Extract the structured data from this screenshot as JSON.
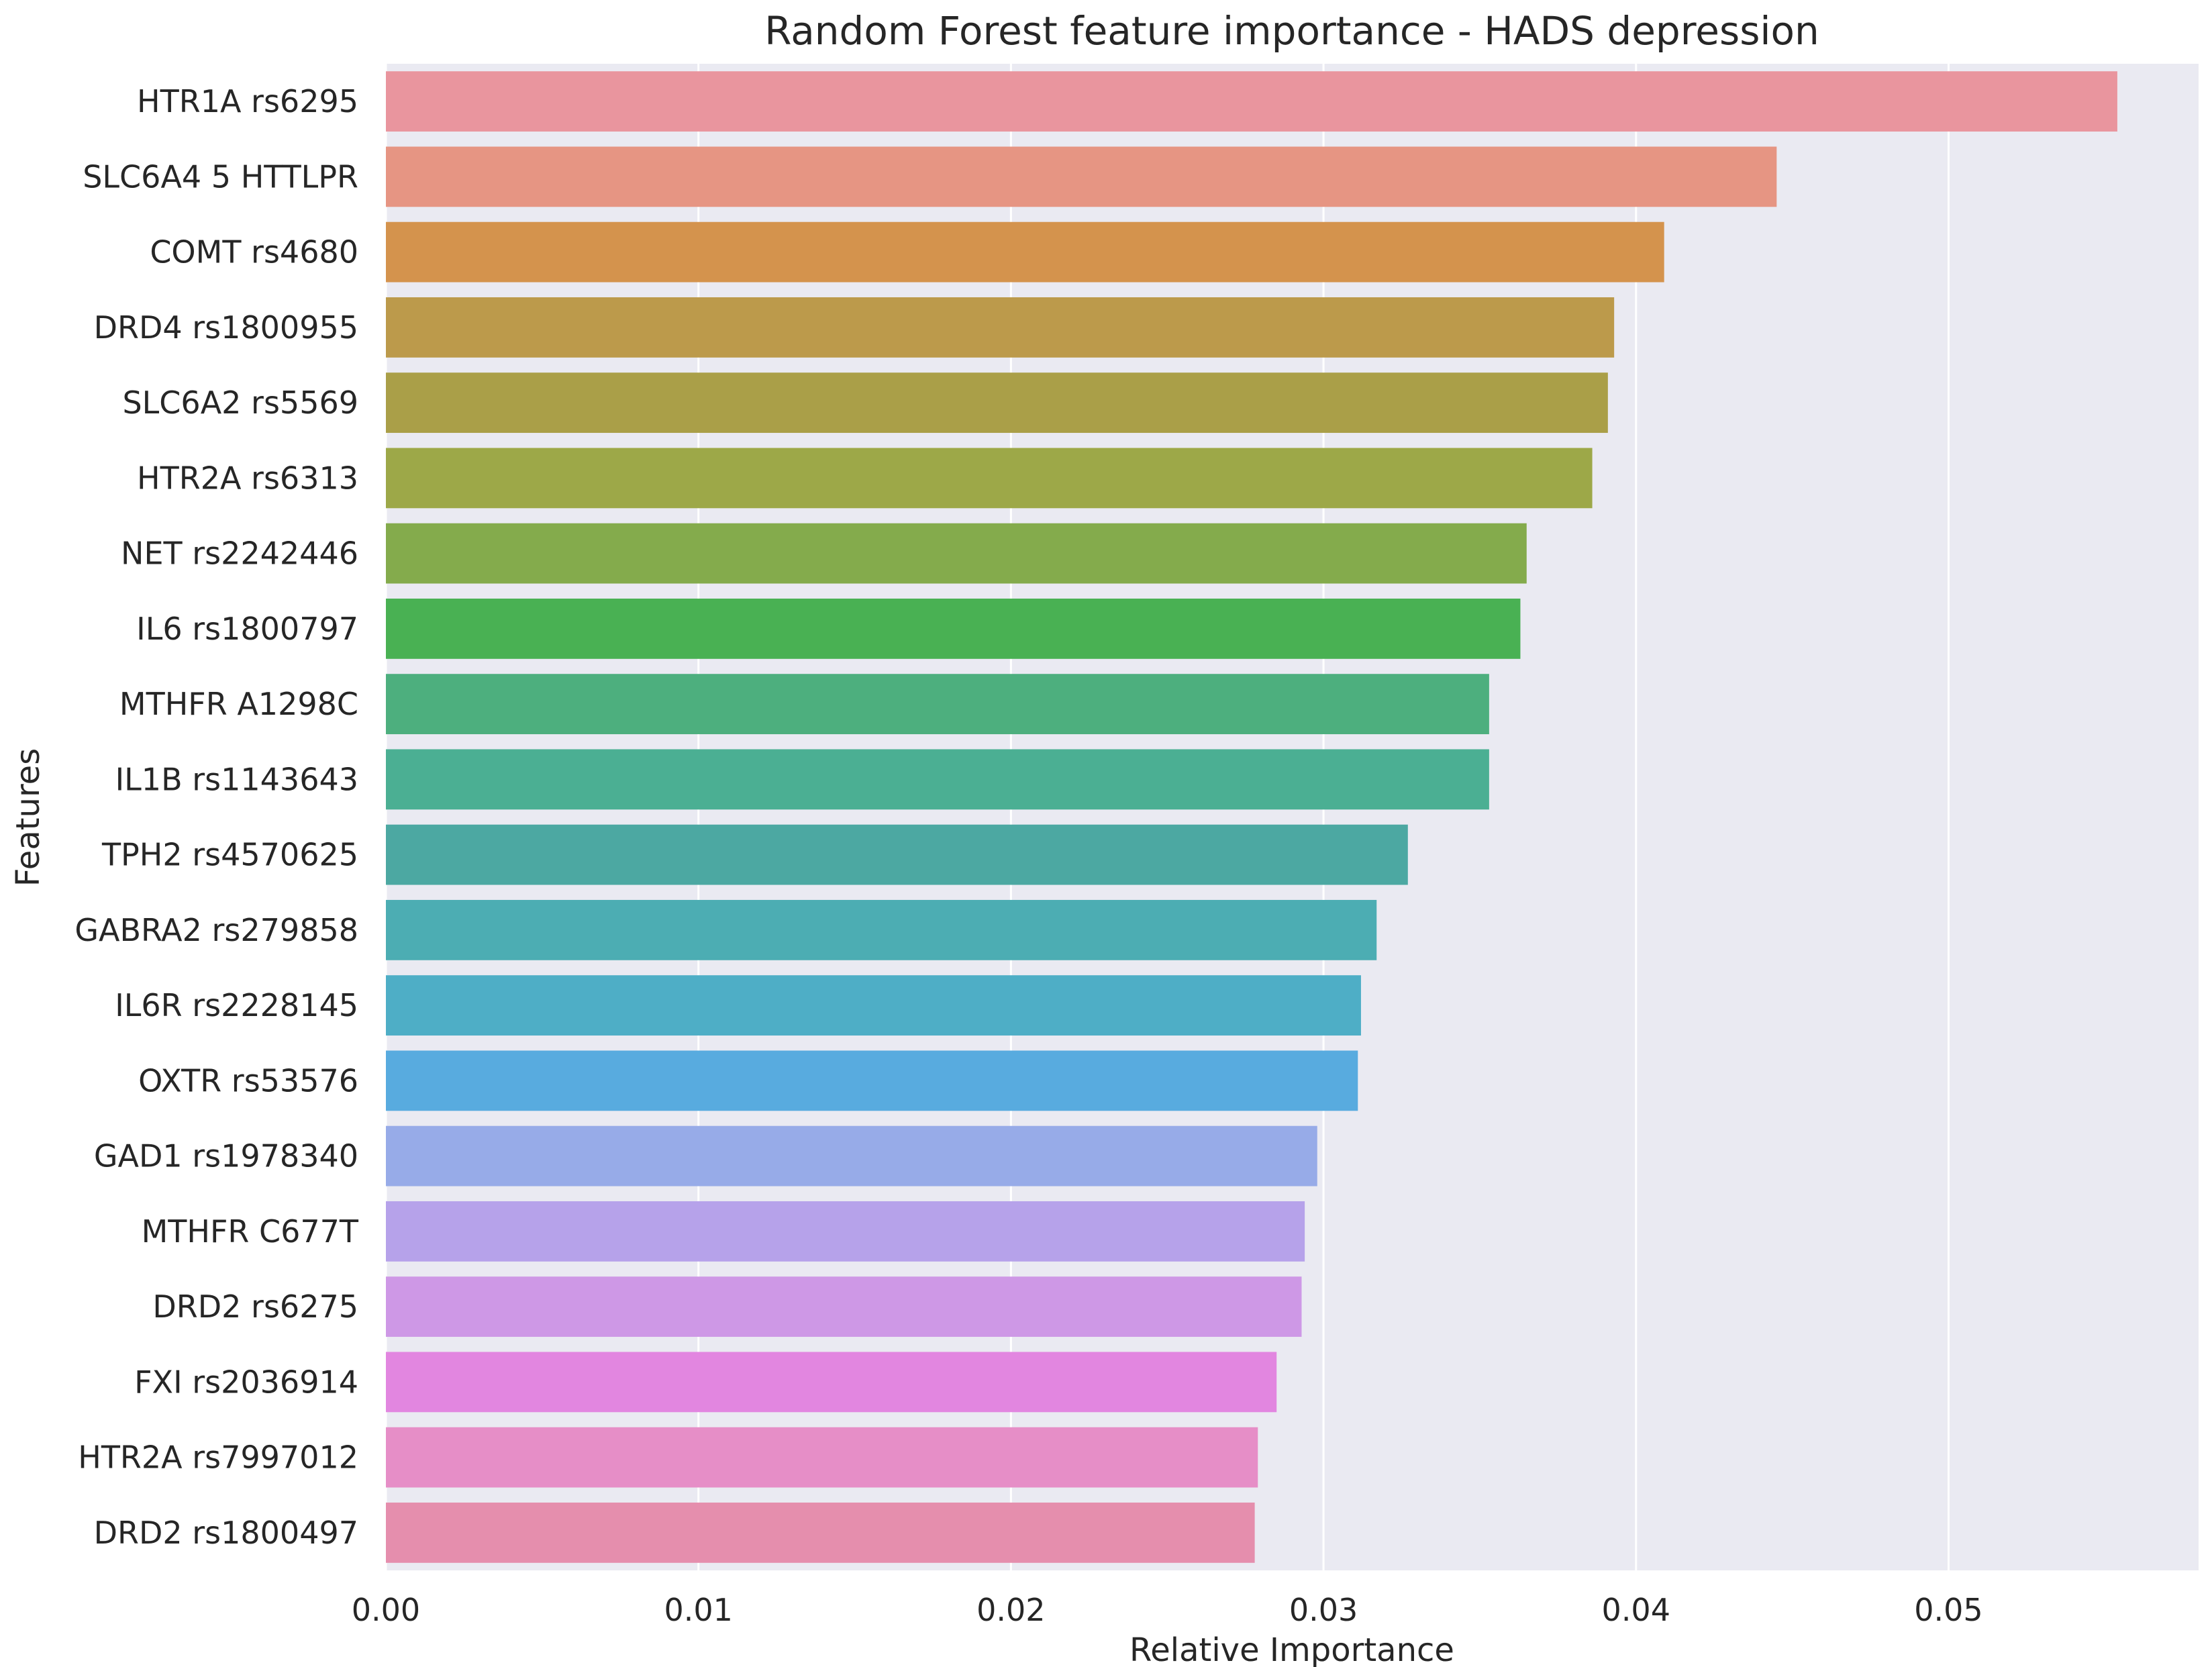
{
  "chart_data": {
    "type": "bar",
    "orientation": "horizontal",
    "title": "Random Forest feature importance - HADS  depression",
    "xlabel": "Relative Importance",
    "ylabel": "Features",
    "xlim": [
      0,
      0.058
    ],
    "xticks": [
      0.0,
      0.01,
      0.02,
      0.03,
      0.04,
      0.05
    ],
    "xtick_labels": [
      "0.00",
      "0.01",
      "0.02",
      "0.03",
      "0.04",
      "0.05"
    ],
    "grid": true,
    "legend": "none",
    "categories": [
      "HTR1A  rs6295",
      "SLC6A4  5  HTTLPR",
      "COMT  rs4680",
      "DRD4  rs1800955",
      "SLC6A2  rs5569",
      "HTR2A  rs6313",
      "NET  rs2242446",
      "IL6  rs1800797",
      "MTHFR  A1298C",
      "IL1B  rs1143643",
      "TPH2  rs4570625",
      "GABRA2  rs279858",
      "IL6R  rs2228145",
      "OXTR  rs53576",
      "GAD1  rs1978340",
      "MTHFR  C677T",
      "DRD2  rs6275",
      "FXI  rs2036914",
      "HTR2A  rs7997012",
      "DRD2  rs1800497"
    ],
    "values": [
      0.0554,
      0.0445,
      0.0409,
      0.0393,
      0.0391,
      0.0386,
      0.0365,
      0.0363,
      0.0353,
      0.0353,
      0.0327,
      0.0317,
      0.0312,
      0.0311,
      0.0298,
      0.0294,
      0.0293,
      0.0285,
      0.0279,
      0.0278
    ],
    "colors": [
      "#e9959e",
      "#e69583",
      "#d4934d",
      "#bc9a4b",
      "#aa9f48",
      "#9da848",
      "#84ab4c",
      "#49b153",
      "#4daf7e",
      "#4baf93",
      "#4ca8a2",
      "#4cadb3",
      "#4eaec6",
      "#58abdf",
      "#97abe8",
      "#b6a2ea",
      "#ce98e6",
      "#e286e0",
      "#e68ec7",
      "#e58ead"
    ],
    "style": {
      "background": "#eaeaf2",
      "grid_color": "#ffffff",
      "text_color": "#262626"
    }
  }
}
